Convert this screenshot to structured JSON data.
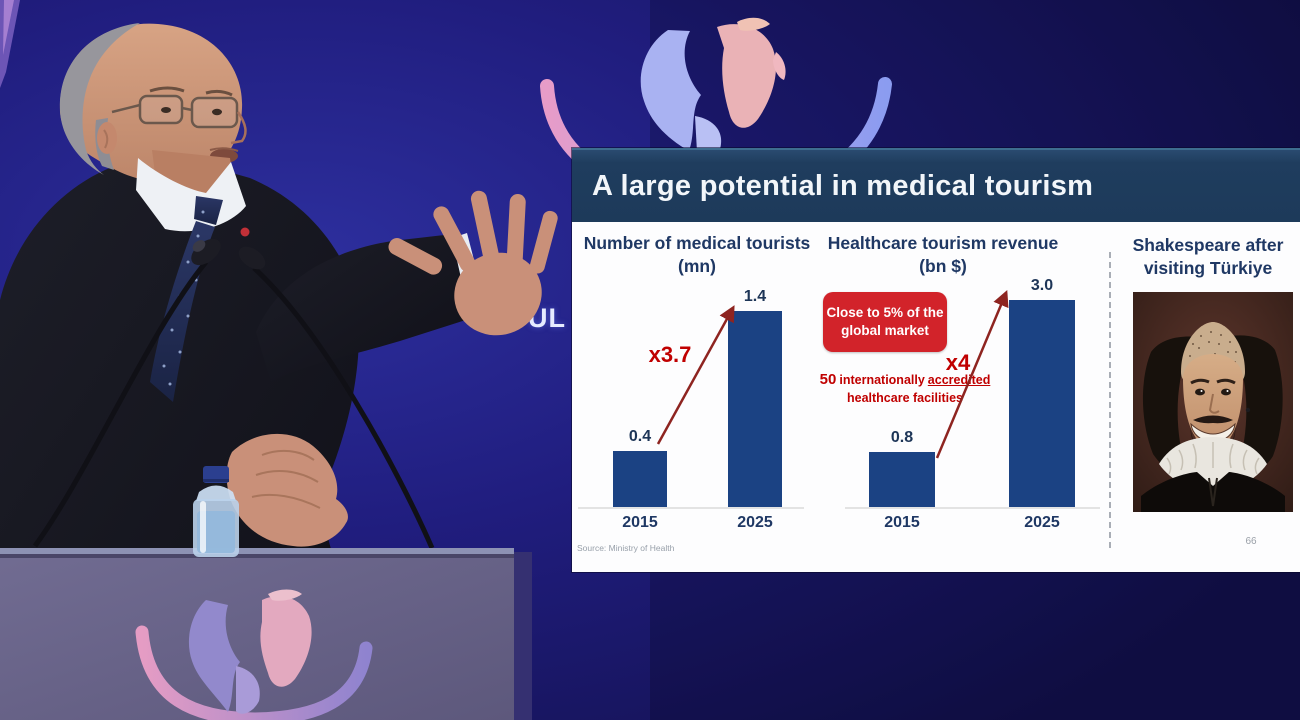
{
  "slide": {
    "title": "A large potential in medical tourism",
    "page_number": "66",
    "source": "Source: Ministry of Health",
    "right_panel": {
      "title_line1": "Shakespeare after",
      "title_line2": "visiting Türkiye",
      "image": "shakespeare-hair-transplant-portrait"
    }
  },
  "chart_data": [
    {
      "type": "bar",
      "title": "Number of medical tourists",
      "unit": "(mn)",
      "categories": [
        "2015",
        "2025"
      ],
      "values": [
        0.4,
        1.4
      ],
      "labels": [
        "0.4",
        "1.4"
      ],
      "ymax": 1.4,
      "multiplier_label": "x3.7",
      "bar_color": "#1b4283",
      "grid": false,
      "legend": "none"
    },
    {
      "type": "bar",
      "title": "Healthcare tourism revenue",
      "unit": "(bn $)",
      "categories": [
        "2015",
        "2025"
      ],
      "values": [
        0.8,
        3.0
      ],
      "labels": [
        "0.8",
        "3.0"
      ],
      "ymax": 3.0,
      "multiplier_label": "x4",
      "callout_line1": "Close to 5% of the",
      "callout_line2": "global market",
      "note": {
        "prefix": "50",
        "middle": "internationally",
        "underlined": "accredited",
        "line2": "healthcare facilities"
      },
      "bar_color": "#1b4283",
      "grid": false,
      "legend": "none"
    }
  ],
  "background": {
    "partial_text": "UL"
  },
  "scene": {
    "speaker": "speaker-at-podium",
    "microphones": "gooseneck-microphones",
    "water_bottle": "water-bottle",
    "stage_logo": "globe-with-orbit-ring",
    "podium_logo": "globe-with-orbit-ring"
  },
  "colors": {
    "background_navy": "#1b1a6a",
    "slide_header": "#1f3d5e",
    "chart_title_navy": "#1f3864",
    "bar_navy": "#1b4283",
    "accent_red": "#c00000",
    "callout_red": "#d2232a",
    "arrow_red": "#8e2420",
    "podium_gray": "#6b6689"
  }
}
